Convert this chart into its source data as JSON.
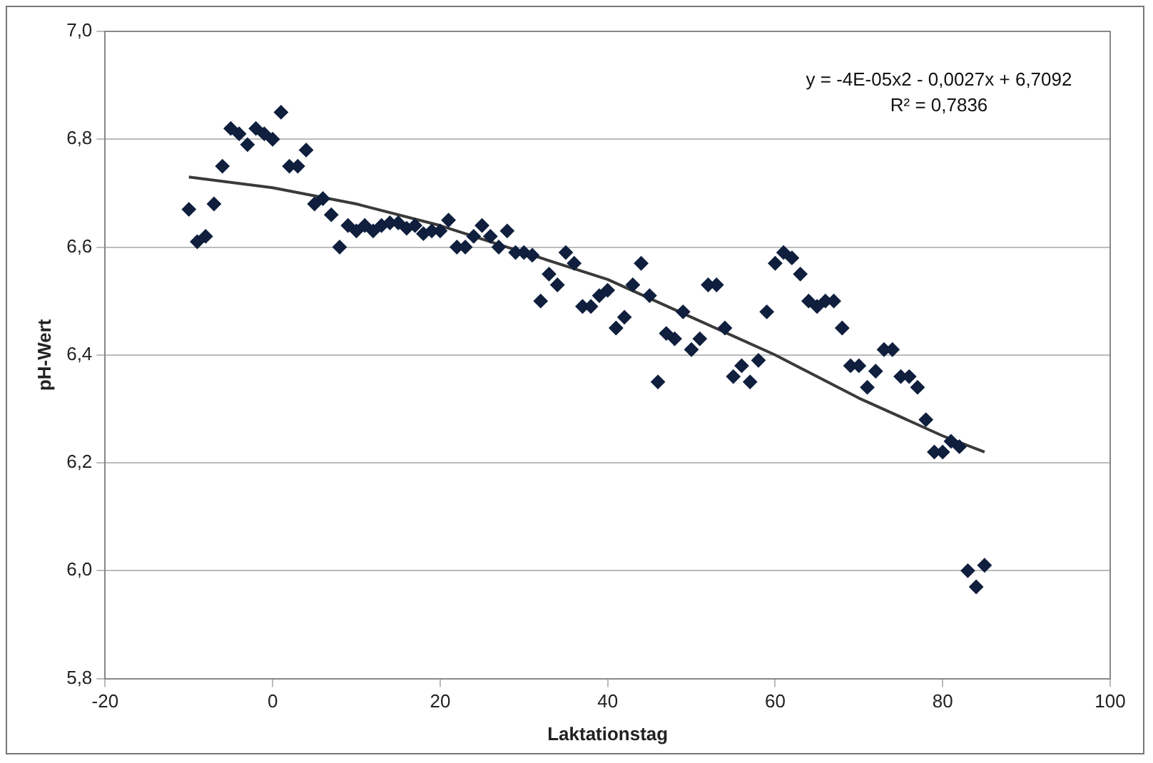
{
  "chart_data": {
    "type": "scatter",
    "xlabel": "Laktationstag",
    "ylabel": "pH-Wert",
    "annotations": [
      "y = -4E-05x2 - 0,0027x + 6,7092",
      "R² = 0,7836"
    ],
    "xlim": [
      -20,
      100
    ],
    "xticks": [
      -20,
      0,
      20,
      40,
      60,
      80,
      100
    ],
    "ylim": [
      5.8,
      7.0
    ],
    "yticks": [
      {
        "value": 5.8,
        "label": "5,8"
      },
      {
        "value": 6.0,
        "label": "6,0"
      },
      {
        "value": 6.2,
        "label": "6,2"
      },
      {
        "value": 6.4,
        "label": "6,4"
      },
      {
        "value": 6.6,
        "label": "6,6"
      },
      {
        "value": 6.8,
        "label": "6,8"
      },
      {
        "value": 7.0,
        "label": "7,0"
      }
    ],
    "grid": "y",
    "legend": false,
    "marker": "diamond",
    "series": [
      {
        "color": "#0f1f3d",
        "x": [
          -10,
          -9,
          -8,
          -7,
          -6,
          -5,
          -4,
          -3,
          -2,
          -1,
          0,
          1,
          2,
          3,
          4,
          5,
          6,
          7,
          8,
          9,
          10,
          11,
          12,
          13,
          14,
          15,
          16,
          17,
          18,
          19,
          20,
          21,
          22,
          23,
          24,
          25,
          26,
          27,
          28,
          29,
          30,
          31,
          32,
          33,
          34,
          35,
          36,
          37,
          38,
          39,
          40,
          41,
          42,
          43,
          44,
          45,
          46,
          47,
          48,
          49,
          50,
          51,
          52,
          53,
          54,
          55,
          56,
          57,
          58,
          59,
          60,
          61,
          62,
          63,
          64,
          65,
          66,
          67,
          68,
          69,
          70,
          71,
          72,
          73,
          74,
          75,
          76,
          77,
          78,
          79,
          80,
          81,
          82,
          83,
          84,
          85
        ],
        "values": [
          6.67,
          6.61,
          6.62,
          6.68,
          6.75,
          6.82,
          6.81,
          6.79,
          6.82,
          6.81,
          6.8,
          6.85,
          6.75,
          6.75,
          6.78,
          6.68,
          6.69,
          6.66,
          6.6,
          6.64,
          6.63,
          6.64,
          6.63,
          6.64,
          6.645,
          6.645,
          6.635,
          6.64,
          6.625,
          6.63,
          6.63,
          6.65,
          6.6,
          6.6,
          6.62,
          6.64,
          6.62,
          6.6,
          6.63,
          6.59,
          6.59,
          6.585,
          6.5,
          6.55,
          6.53,
          6.59,
          6.57,
          6.49,
          6.49,
          6.51,
          6.52,
          6.45,
          6.47,
          6.53,
          6.57,
          6.51,
          6.35,
          6.44,
          6.43,
          6.48,
          6.41,
          6.43,
          6.53,
          6.53,
          6.45,
          6.36,
          6.38,
          6.35,
          6.39,
          6.48,
          6.57,
          6.59,
          6.58,
          6.55,
          6.5,
          6.49,
          6.5,
          6.5,
          6.45,
          6.38,
          6.38,
          6.34,
          6.37,
          6.41,
          6.41,
          6.36,
          6.36,
          6.34,
          6.28,
          6.22,
          6.22,
          6.24,
          6.23,
          6.0,
          5.97,
          6.01
        ]
      },
      {
        "type": "line",
        "color": "#3a3a3a",
        "marker": "none",
        "x": [
          -10,
          0,
          10,
          20,
          30,
          40,
          50,
          60,
          70,
          80,
          85
        ],
        "values": [
          6.73,
          6.71,
          6.68,
          6.64,
          6.59,
          6.54,
          6.47,
          6.4,
          6.32,
          6.25,
          6.22
        ]
      }
    ]
  }
}
